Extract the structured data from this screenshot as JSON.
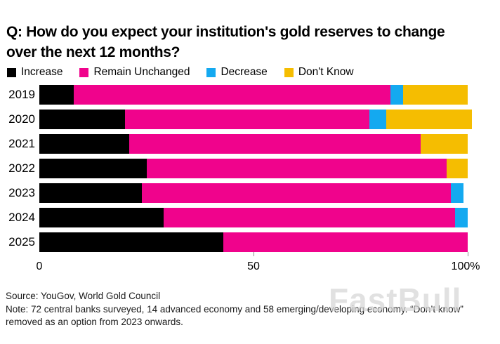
{
  "title_line1": "Q: How do you expect your institution's gold reserves to change",
  "title_line2": "over the next 12 months?",
  "legend": [
    {
      "label": "Increase",
      "color": "#000000"
    },
    {
      "label": "Remain Unchanged",
      "color": "#f0038c"
    },
    {
      "label": "Decrease",
      "color": "#14a9f0"
    },
    {
      "label": "Don't Know",
      "color": "#f5bd01"
    }
  ],
  "chart_data": {
    "type": "bar",
    "orientation": "horizontal",
    "stacked": true,
    "units": "percent",
    "categories": [
      "2019",
      "2020",
      "2021",
      "2022",
      "2023",
      "2024",
      "2025"
    ],
    "series": [
      {
        "name": "Increase",
        "color": "#000000",
        "values": [
          8,
          20,
          21,
          25,
          24,
          29,
          43
        ]
      },
      {
        "name": "Remain Unchanged",
        "color": "#f0038c",
        "values": [
          74,
          57,
          68,
          70,
          72,
          68,
          57
        ]
      },
      {
        "name": "Decrease",
        "color": "#14a9f0",
        "values": [
          3,
          4,
          0,
          0,
          3,
          3,
          0
        ]
      },
      {
        "name": "Don't Know",
        "color": "#f5bd01",
        "values": [
          15,
          20,
          11,
          5,
          0,
          0,
          0
        ]
      }
    ],
    "x_axis": {
      "range": [
        0,
        100
      ],
      "tick_labels": [
        "0",
        "50",
        "100%"
      ]
    },
    "legend_position": "top",
    "grid": false
  },
  "footer": {
    "source": "Source: YouGov, World Gold Council",
    "note": "Note: 72 central banks surveyed, 14 advanced economy and 58 emerging/developing economy. “Don’t know” removed as an option from 2023 onwards."
  },
  "watermark": "FastBull"
}
